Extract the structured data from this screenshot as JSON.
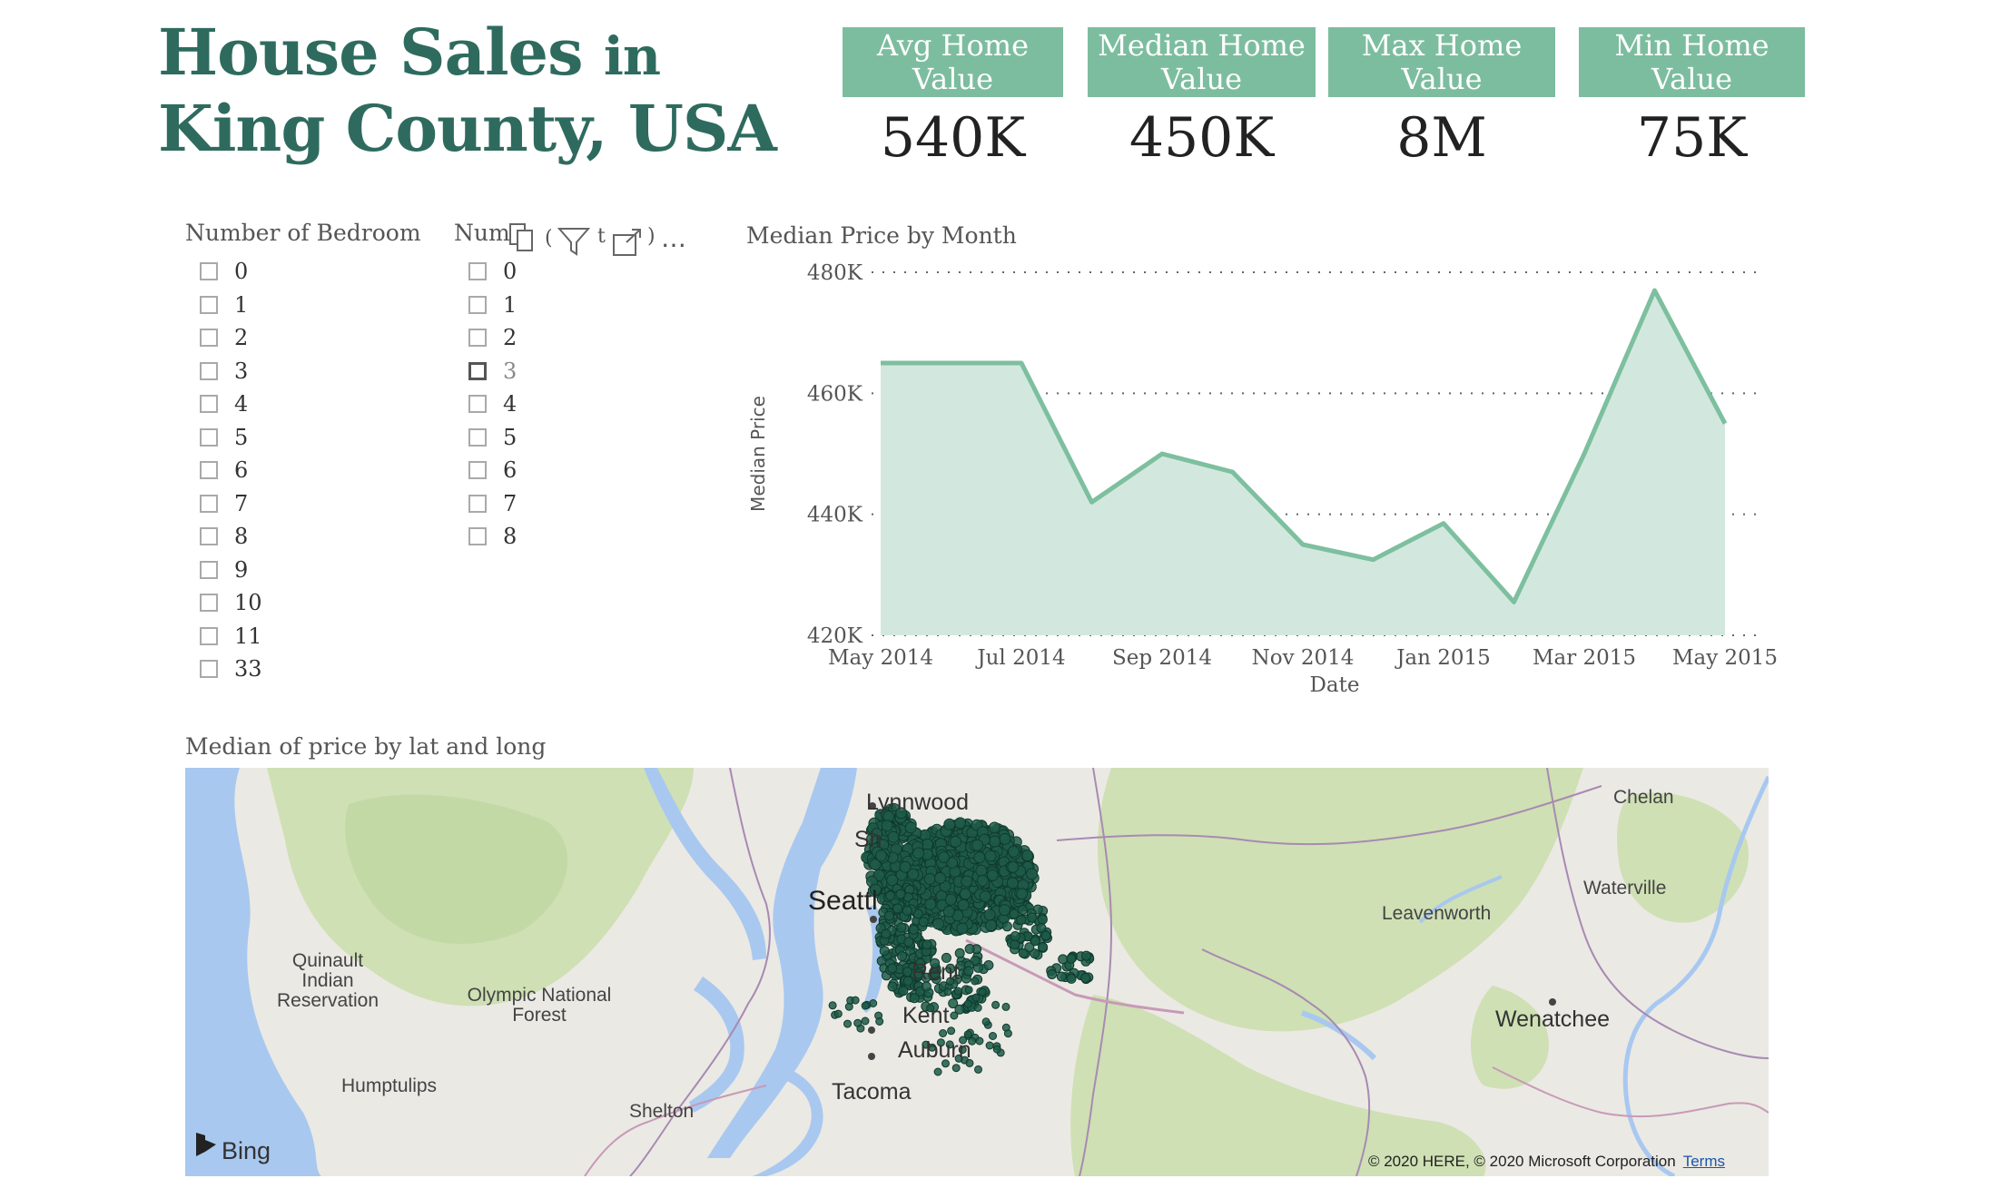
{
  "title": {
    "line1_main": "House Sales",
    "line1_small": "in",
    "line2": "King County, USA"
  },
  "kpis": [
    {
      "label": "Avg Home Value",
      "value": "540K"
    },
    {
      "label": "Median Home Value",
      "value": "450K"
    },
    {
      "label": "Max Home Value",
      "value": "8M"
    },
    {
      "label": "Min Home Value",
      "value": "75K"
    }
  ],
  "slicer_bedroom": {
    "title": "Number of Bedroom",
    "options": [
      "0",
      "1",
      "2",
      "3",
      "4",
      "5",
      "6",
      "7",
      "8",
      "9",
      "10",
      "11",
      "33"
    ]
  },
  "slicer_second": {
    "title_visible": "Num",
    "options": [
      "0",
      "1",
      "2",
      "3",
      "4",
      "5",
      "6",
      "7",
      "8"
    ],
    "hovered_option": "3",
    "title_fragments": [
      "(",
      "t",
      ")"
    ]
  },
  "visual_toolbar": {
    "copy_icon": "copy-icon",
    "filter_icon": "filter-icon",
    "focus_icon": "focus-mode-icon",
    "more": "…"
  },
  "chart_data": {
    "type": "area",
    "title": "Median Price by Month",
    "xlabel": "Date",
    "ylabel": "Median Price",
    "x": [
      "2014-05",
      "2014-06",
      "2014-07",
      "2014-08",
      "2014-09",
      "2014-10",
      "2014-11",
      "2014-12",
      "2015-01",
      "2015-02",
      "2015-03",
      "2015-04",
      "2015-05"
    ],
    "values": [
      465000,
      465000,
      465000,
      442000,
      450000,
      447000,
      435000,
      432500,
      438500,
      425500,
      450000,
      477000,
      455000
    ],
    "x_tick_labels": [
      "May 2014",
      "Jul 2014",
      "Sep 2014",
      "Nov 2014",
      "Jan 2015",
      "Mar 2015",
      "May 2015"
    ],
    "y_ticks": [
      "420K",
      "440K",
      "460K",
      "480K"
    ],
    "ylim": [
      420000,
      480000
    ],
    "grid": "horizontal dotted",
    "line_color": "#7dbf9f",
    "fill_color": "#d2e8de"
  },
  "map": {
    "title": "Median of price by lat and long",
    "labels": {
      "lynnwood": "Lynnwood",
      "shoreline": "Sh",
      "seattle": "Seattl",
      "renton": "Rent",
      "kent": "Kent",
      "auburn": "Auburn",
      "tacoma": "Tacoma",
      "shelton": "Shelton",
      "humptulips": "Humptulips",
      "quinault": "Quinault Indian Reservation",
      "olympic": "Olympic National Forest",
      "leavenworth": "Leavenworth",
      "wenatchee": "Wenatchee",
      "waterville": "Waterville",
      "chelan": "Chelan"
    },
    "brand": "Bing",
    "copyright": "© 2020 HERE, © 2020 Microsoft Corporation",
    "terms": "Terms",
    "point_color": "#1e5a48",
    "water_color": "#a8c8f0",
    "forest_color": "#cfe0b4"
  }
}
